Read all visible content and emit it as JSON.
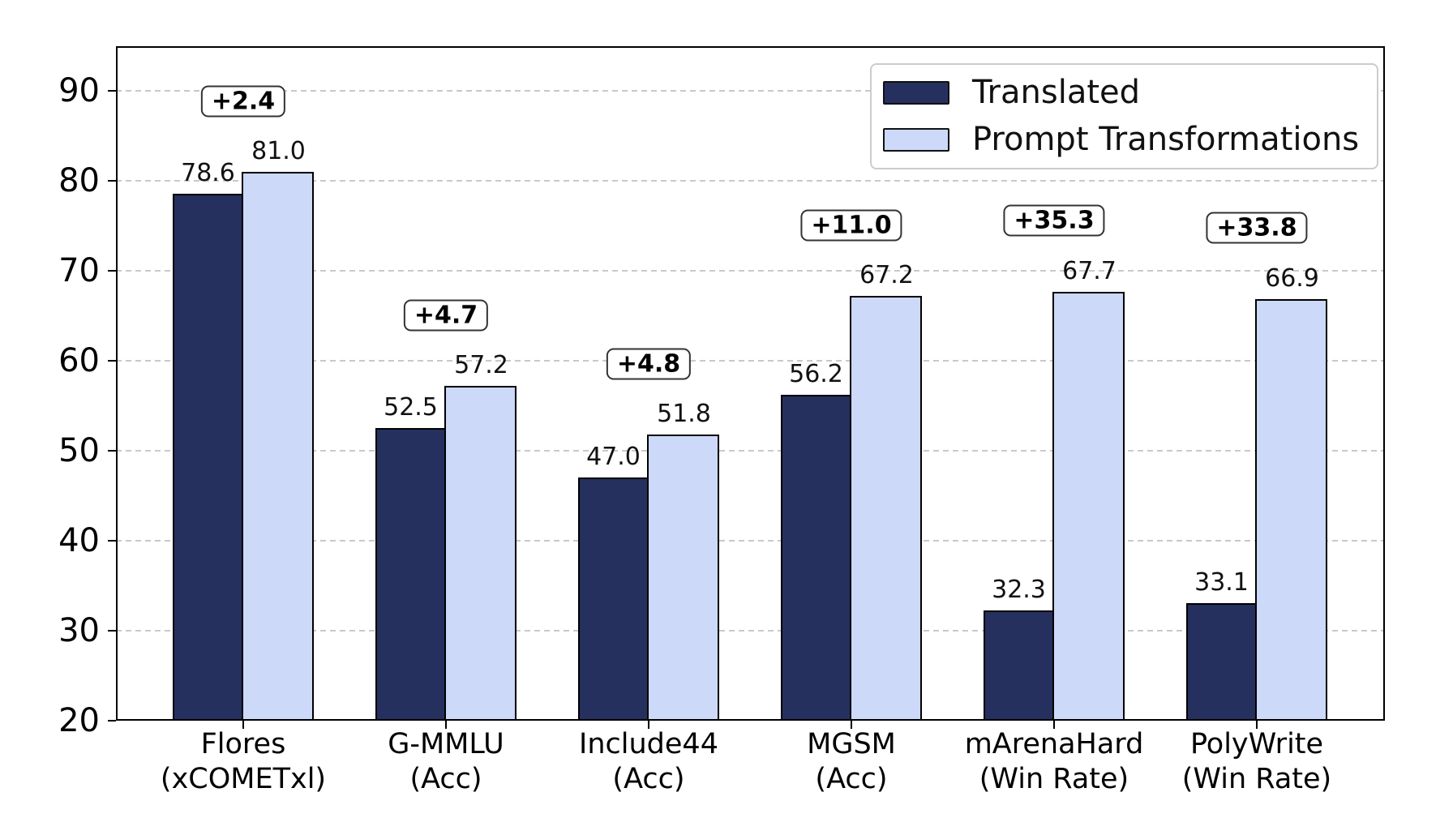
{
  "chart_data": {
    "type": "bar",
    "title": "",
    "categories": [
      "Flores\n(xCOMETxl)",
      "G-MMLU\n(Acc)",
      "Include44\n(Acc)",
      "MGSM\n(Acc)",
      "mArenaHard\n(Win Rate)",
      "PolyWrite\n(Win Rate)"
    ],
    "series": [
      {
        "name": "Translated",
        "color": "#25305e",
        "values": [
          78.6,
          52.5,
          47.0,
          56.2,
          32.3,
          33.1
        ]
      },
      {
        "name": "Prompt Transformations",
        "color": "#ccd9f8",
        "values": [
          81.0,
          57.2,
          51.8,
          67.2,
          67.7,
          66.9
        ]
      }
    ],
    "delta_labels": [
      "+2.4",
      "+4.7",
      "+4.8",
      "+11.0",
      "+35.3",
      "+33.8"
    ],
    "xlabel": "",
    "ylabel": "",
    "ylim": [
      20,
      95
    ],
    "yticks": [
      20,
      30,
      40,
      50,
      60,
      70,
      80,
      90
    ],
    "grid": "horizontal-dashed",
    "legend_position": "top-right",
    "bar_edge_color": "#000000",
    "gridline_color": "#c9c9c9"
  }
}
